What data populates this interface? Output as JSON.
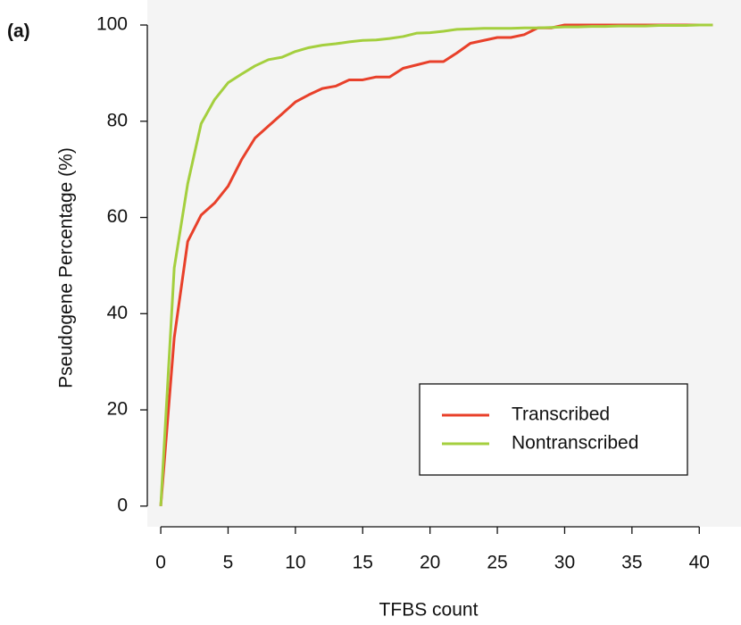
{
  "chart_data": {
    "type": "line",
    "panel_label": "(a)",
    "x_label": "TFBS count",
    "y_label": "Pseudogene Percentage (%)",
    "x": [
      0,
      1,
      2,
      3,
      4,
      5,
      6,
      7,
      8,
      9,
      10,
      11,
      12,
      13,
      14,
      15,
      16,
      17,
      18,
      19,
      20,
      21,
      22,
      23,
      24,
      25,
      26,
      27,
      28,
      29,
      30,
      31,
      32,
      33,
      34,
      35,
      36,
      37,
      38,
      39,
      40,
      41
    ],
    "series": [
      {
        "name": "Transcribed",
        "color": "#e8402a",
        "values": [
          0,
          35,
          55,
          60.5,
          63,
          66.5,
          72,
          76.5,
          79,
          81.5,
          84,
          85.5,
          86.8,
          87.3,
          88.6,
          88.6,
          89.2,
          89.2,
          91,
          91.7,
          92.4,
          92.4,
          94.2,
          96.2,
          96.8,
          97.4,
          97.4,
          98,
          99.4,
          99.4,
          100,
          100,
          100,
          100,
          100,
          100,
          100,
          100,
          100,
          100,
          100,
          100
        ]
      },
      {
        "name": "Nontranscribed",
        "color": "#a4cf3e",
        "values": [
          0,
          49.5,
          67,
          79.5,
          84.5,
          88,
          89.8,
          91.5,
          92.8,
          93.3,
          94.5,
          95.3,
          95.8,
          96.1,
          96.5,
          96.8,
          96.9,
          97.2,
          97.6,
          98.3,
          98.4,
          98.7,
          99.1,
          99.2,
          99.3,
          99.3,
          99.3,
          99.4,
          99.4,
          99.5,
          99.6,
          99.6,
          99.7,
          99.7,
          99.8,
          99.8,
          99.8,
          99.9,
          99.9,
          99.9,
          100,
          100
        ]
      }
    ],
    "xlim": [
      -1,
      43.1
    ],
    "ylim": [
      -4.3,
      105.2
    ],
    "xticks": [
      0,
      5,
      10,
      15,
      20,
      25,
      30,
      35,
      40
    ],
    "yticks": [
      0,
      20,
      40,
      60,
      80,
      100
    ],
    "legend": "bottom-right",
    "background": "#f4f4f4"
  }
}
